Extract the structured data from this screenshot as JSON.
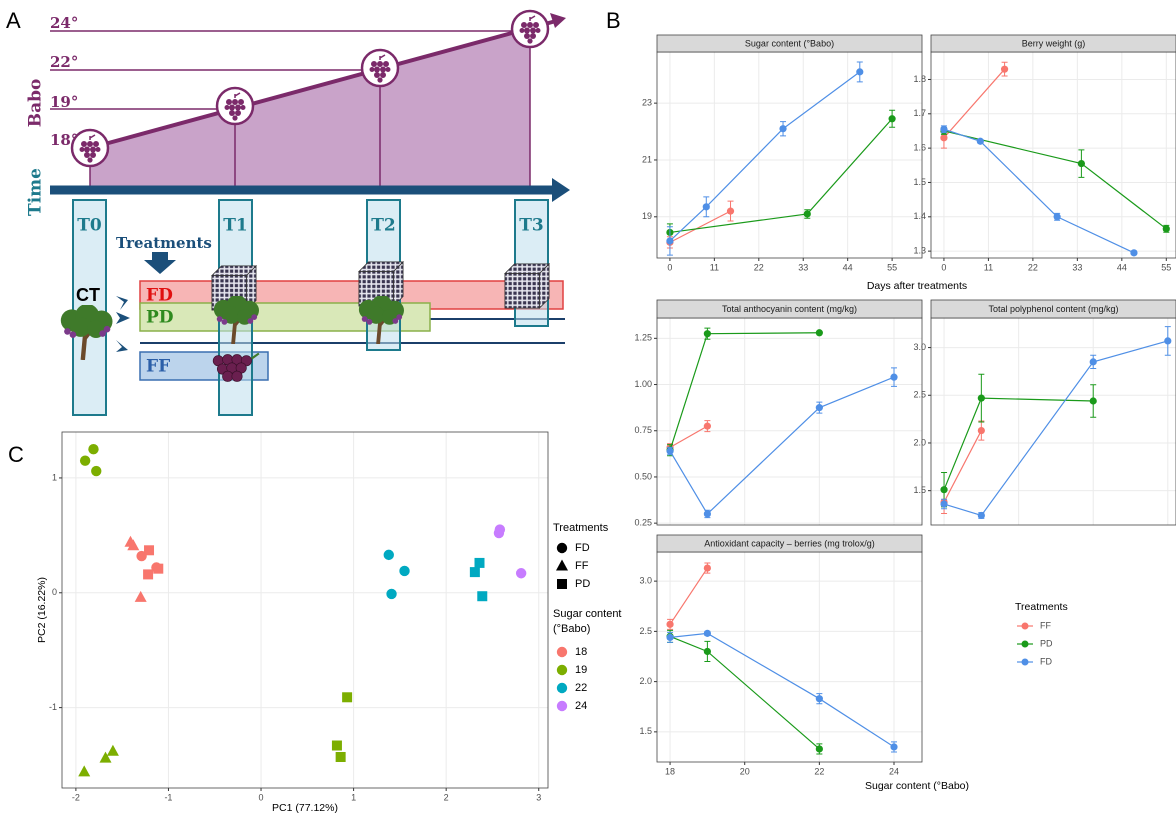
{
  "panel_labels": [
    "A",
    "B",
    "C"
  ],
  "diagram": {
    "babo_axis": "Babo",
    "time_axis": "Time",
    "babo_levels": [
      "18°",
      "19°",
      "22°",
      "24°"
    ],
    "timepoints": [
      "T0",
      "T1",
      "T2",
      "T3"
    ],
    "treatments_label": "Treatments",
    "control": "CT",
    "treatments": [
      "FD",
      "PD",
      "FF"
    ]
  },
  "chart_data": [
    {
      "type": "line",
      "title": "Sugar content (°Babo)",
      "xlabel": "Days after treatments",
      "xlim": [
        -3.2,
        62.4
      ],
      "xticks": [
        0,
        11,
        22,
        33,
        44,
        55
      ],
      "show_xtick_labels": true,
      "ylim": [
        17.55,
        24.8
      ],
      "yticks": [
        19,
        21,
        23
      ],
      "series": [
        {
          "name": "FF",
          "color": "#f8766d",
          "x": [
            0,
            15
          ],
          "values": [
            18.1,
            19.2
          ],
          "errors": [
            0.2,
            0.35
          ]
        },
        {
          "name": "PD",
          "color": "#1a9a1a",
          "x": [
            0,
            34,
            55
          ],
          "values": [
            18.45,
            19.1,
            22.45
          ],
          "errors": [
            0.3,
            0.15,
            0.3
          ]
        },
        {
          "name": "FD",
          "color": "#4f8fe6",
          "x": [
            0,
            9,
            28,
            47
          ],
          "values": [
            18.15,
            19.35,
            22.1,
            24.1
          ],
          "errors": [
            0.5,
            0.35,
            0.25,
            0.35
          ]
        }
      ]
    },
    {
      "type": "line",
      "title": "Berry weight (g)",
      "xlim": [
        -3.2,
        57.4
      ],
      "xticks": [
        0,
        11,
        22,
        33,
        44,
        55
      ],
      "show_xtick_labels": true,
      "ylim": [
        1.28,
        1.88
      ],
      "yticks": [
        1.3,
        1.4,
        1.5,
        1.6,
        1.7,
        1.8
      ],
      "series": [
        {
          "name": "FF",
          "color": "#f8766d",
          "x": [
            0,
            15
          ],
          "values": [
            1.63,
            1.83
          ],
          "errors": [
            0.03,
            0.02
          ]
        },
        {
          "name": "PD",
          "color": "#1a9a1a",
          "x": [
            0,
            34,
            55
          ],
          "values": [
            1.65,
            1.555,
            1.365
          ],
          "errors": [
            0.01,
            0.04,
            0.01
          ]
        },
        {
          "name": "FD",
          "color": "#4f8fe6",
          "x": [
            0,
            9,
            28,
            47
          ],
          "values": [
            1.655,
            1.62,
            1.4,
            1.295
          ],
          "errors": [
            0.01,
            0.005,
            0.01,
            0.005
          ]
        }
      ]
    },
    {
      "type": "line",
      "title": "Total anthocyanin content (mg/kg)",
      "xlim": [
        17.65,
        24.75
      ],
      "xticks": [
        18,
        20,
        22,
        24
      ],
      "show_xtick_labels": false,
      "ylim": [
        0.24,
        1.36
      ],
      "yticks": [
        0.25,
        {
          "value": 0.5,
          "label": "0.50"
        },
        0.75,
        {
          "value": 1,
          "label": "1.00"
        },
        1.25
      ],
      "series": [
        {
          "name": "FF",
          "color": "#f8766d",
          "x": [
            18,
            19
          ],
          "values": [
            0.66,
            0.775
          ],
          "errors": [
            0.02,
            0.03
          ]
        },
        {
          "name": "PD",
          "color": "#1a9a1a",
          "x": [
            18,
            19,
            22
          ],
          "values": [
            0.645,
            1.275,
            1.28
          ],
          "errors": [
            0.03,
            0.03,
            0.005
          ]
        },
        {
          "name": "FD",
          "color": "#4f8fe6",
          "x": [
            18,
            19,
            22,
            24
          ],
          "values": [
            0.64,
            0.3,
            0.875,
            1.04
          ],
          "errors": [
            0.02,
            0.02,
            0.03,
            0.05
          ]
        }
      ]
    },
    {
      "type": "line",
      "title": "Total polyphenol content (mg/kg)",
      "xlim": [
        17.65,
        24.22
      ],
      "xticks": [
        18,
        20,
        22,
        24
      ],
      "show_xtick_labels": false,
      "ylim": [
        1.14,
        3.31
      ],
      "yticks": [
        1.5,
        {
          "value": 2,
          "label": "2.0"
        },
        2.5,
        {
          "value": 3,
          "label": "3.0"
        }
      ],
      "series": [
        {
          "name": "FF",
          "color": "#f8766d",
          "x": [
            18,
            19
          ],
          "values": [
            1.38,
            2.13
          ],
          "errors": [
            0.12,
            0.1
          ]
        },
        {
          "name": "PD",
          "color": "#1a9a1a",
          "x": [
            18,
            19,
            22
          ],
          "values": [
            1.51,
            2.47,
            2.44
          ],
          "errors": [
            0.18,
            0.25,
            0.17
          ]
        },
        {
          "name": "FD",
          "color": "#4f8fe6",
          "x": [
            18,
            19,
            22,
            24
          ],
          "values": [
            1.36,
            1.24,
            2.85,
            3.07
          ],
          "errors": [
            0.05,
            0.03,
            0.07,
            0.15
          ]
        }
      ]
    },
    {
      "type": "line",
      "title": "Antioxidant capacity – berries (mg trolox/g)",
      "xlabel": "Sugar content (°Babo)",
      "legend_title": "Treatments",
      "xlim": [
        17.65,
        24.75
      ],
      "xticks": [
        18,
        20,
        22,
        24
      ],
      "show_xtick_labels": true,
      "ylim": [
        1.2,
        3.29
      ],
      "yticks": [
        1.5,
        {
          "value": 2,
          "label": "2.0"
        },
        2.5,
        {
          "value": 3,
          "label": "3.0"
        }
      ],
      "series": [
        {
          "name": "FF",
          "color": "#f8766d",
          "x": [
            18,
            19
          ],
          "values": [
            2.57,
            3.13
          ],
          "errors": [
            0.05,
            0.05
          ]
        },
        {
          "name": "PD",
          "color": "#1a9a1a",
          "x": [
            18,
            19,
            22
          ],
          "values": [
            2.45,
            2.3,
            1.33
          ],
          "errors": [
            0.06,
            0.1,
            0.05
          ]
        },
        {
          "name": "FD",
          "color": "#4f8fe6",
          "x": [
            18,
            19,
            22,
            24
          ],
          "values": [
            2.44,
            2.48,
            1.83,
            1.35
          ],
          "errors": [
            0.05,
            0.02,
            0.05,
            0.05
          ]
        }
      ]
    },
    {
      "type": "scatter",
      "xlabel": "PC1 (77.12%)",
      "ylabel": "PC2 (16.22%)",
      "xlim": [
        -2.15,
        3.1
      ],
      "xticks": [
        -2,
        -1,
        0,
        1,
        2,
        3
      ],
      "ylim": [
        -1.7,
        1.4
      ],
      "yticks": [
        -1,
        0,
        1
      ],
      "shape_legend": {
        "title": "Treatments",
        "names": [
          "FD",
          "FF",
          "PD"
        ]
      },
      "legend_title": [
        "Sugar content",
        "(°Babo)"
      ],
      "series": [
        {
          "name": "18",
          "color": "#f8766d",
          "x": [
            -1.41,
            -1.38,
            -1.3,
            -1.29,
            -1.13,
            -1.21,
            -1.22,
            -1.11
          ],
          "values": [
            0.44,
            0.41,
            -0.04,
            0.32,
            0.22,
            0.37,
            0.16,
            0.21
          ],
          "treatments": [
            "FF",
            "FF",
            "FF",
            "FD",
            "FD",
            "PD",
            "PD",
            "PD"
          ]
        },
        {
          "name": "19",
          "color": "#7cae00",
          "x": [
            -1.9,
            -1.81,
            -1.78,
            -1.91,
            -1.68,
            -1.6,
            0.93,
            0.82,
            0.86
          ],
          "values": [
            1.15,
            1.25,
            1.06,
            -1.56,
            -1.44,
            -1.38,
            -0.91,
            -1.33,
            -1.43
          ],
          "treatments": [
            "FD",
            "FD",
            "FD",
            "FF",
            "FF",
            "FF",
            "PD",
            "PD",
            "PD"
          ]
        },
        {
          "name": "22",
          "color": "#00a9c1",
          "x": [
            1.38,
            1.55,
            1.41,
            2.31,
            2.36,
            2.39
          ],
          "values": [
            0.33,
            0.19,
            -0.01,
            0.18,
            0.26,
            -0.03
          ],
          "treatments": [
            "FD",
            "FD",
            "FD",
            "PD",
            "PD",
            "PD"
          ]
        },
        {
          "name": "24",
          "color": "#c77cff",
          "x": [
            2.57,
            2.58,
            2.81
          ],
          "values": [
            0.52,
            0.55,
            0.17
          ],
          "treatments": [
            "FD",
            "FD",
            "FD"
          ]
        }
      ]
    }
  ]
}
